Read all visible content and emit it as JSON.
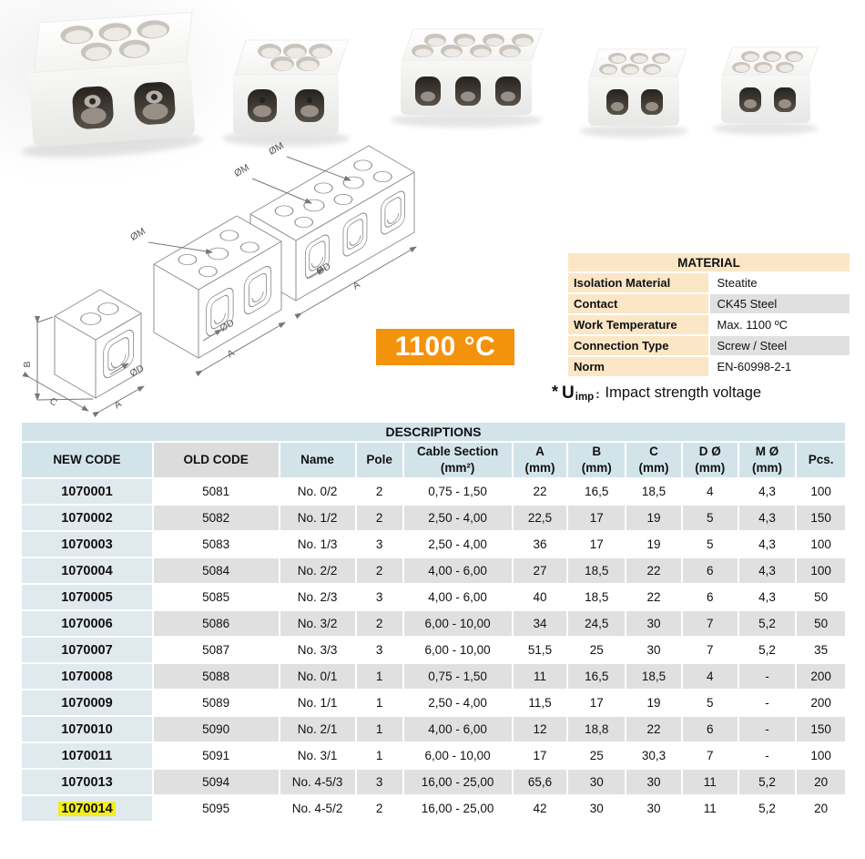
{
  "badge": {
    "text": "1100 °C"
  },
  "note": {
    "prefix": "*",
    "symbol": "U",
    "subscript": "imp",
    "separator": ":",
    "text": "Impact strength voltage"
  },
  "drawings": {
    "labels": {
      "diameter_m": "ØM",
      "diameter_d": "ØD",
      "dim_a": "A",
      "dim_b": "B",
      "dim_c": "C"
    }
  },
  "photos": {
    "items": [
      {
        "name": "porcelain-terminal-block-2-pole-large"
      },
      {
        "name": "porcelain-terminal-block-2-pole-medium"
      },
      {
        "name": "porcelain-terminal-block-3-pole"
      },
      {
        "name": "porcelain-terminal-block-2-pole-small-1"
      },
      {
        "name": "porcelain-terminal-block-2-pole-small-2"
      }
    ]
  },
  "material_table": {
    "title": "MATERIAL",
    "rows": [
      {
        "label": "Isolation Material",
        "value": "Steatite"
      },
      {
        "label": "Contact",
        "value": "CK45 Steel"
      },
      {
        "label": "Work Temperature",
        "value": "Max. 1100 ºC"
      },
      {
        "label": "Connection Type",
        "value": "Screw / Steel"
      },
      {
        "label": "Norm",
        "value": "EN-60998-2-1"
      }
    ]
  },
  "descriptions_table": {
    "title": "DESCRIPTIONS",
    "columns": [
      {
        "label": "NEW CODE"
      },
      {
        "label": "OLD CODE"
      },
      {
        "label": "Name"
      },
      {
        "label": "Pole"
      },
      {
        "label": "Cable Section",
        "sub": "(mm²)"
      },
      {
        "label": "A",
        "sub": "(mm)"
      },
      {
        "label": "B",
        "sub": "(mm)"
      },
      {
        "label": "C",
        "sub": "(mm)"
      },
      {
        "label": "D Ø",
        "sub": "(mm)"
      },
      {
        "label": "M Ø",
        "sub": "(mm)"
      },
      {
        "label": "Pcs."
      }
    ],
    "rows": [
      [
        "1070001",
        "5081",
        "No. 0/2",
        "2",
        "0,75 - 1,50",
        "22",
        "16,5",
        "18,5",
        "4",
        "4,3",
        "100"
      ],
      [
        "1070002",
        "5082",
        "No. 1/2",
        "2",
        "2,50 - 4,00",
        "22,5",
        "17",
        "19",
        "5",
        "4,3",
        "150"
      ],
      [
        "1070003",
        "5083",
        "No. 1/3",
        "3",
        "2,50 - 4,00",
        "36",
        "17",
        "19",
        "5",
        "4,3",
        "100"
      ],
      [
        "1070004",
        "5084",
        "No. 2/2",
        "2",
        "4,00 - 6,00",
        "27",
        "18,5",
        "22",
        "6",
        "4,3",
        "100"
      ],
      [
        "1070005",
        "5085",
        "No. 2/3",
        "3",
        "4,00 - 6,00",
        "40",
        "18,5",
        "22",
        "6",
        "4,3",
        "50"
      ],
      [
        "1070006",
        "5086",
        "No. 3/2",
        "2",
        "6,00 - 10,00",
        "34",
        "24,5",
        "30",
        "7",
        "5,2",
        "50"
      ],
      [
        "1070007",
        "5087",
        "No. 3/3",
        "3",
        "6,00 - 10,00",
        "51,5",
        "25",
        "30",
        "7",
        "5,2",
        "35"
      ],
      [
        "1070008",
        "5088",
        "No. 0/1",
        "1",
        "0,75 - 1,50",
        "11",
        "16,5",
        "18,5",
        "4",
        "-",
        "200"
      ],
      [
        "1070009",
        "5089",
        "No. 1/1",
        "1",
        "2,50 - 4,00",
        "11,5",
        "17",
        "19",
        "5",
        "-",
        "200"
      ],
      [
        "1070010",
        "5090",
        "No. 2/1",
        "1",
        "4,00 - 6,00",
        "12",
        "18,8",
        "22",
        "6",
        "-",
        "150"
      ],
      [
        "1070011",
        "5091",
        "No. 3/1",
        "1",
        "6,00 - 10,00",
        "17",
        "25",
        "30,3",
        "7",
        "-",
        "100"
      ],
      [
        "1070013",
        "5094",
        "No. 4-5/3",
        "3",
        "16,00 - 25,00",
        "65,6",
        "30",
        "30",
        "11",
        "5,2",
        "20"
      ],
      [
        "1070014",
        "5095",
        "No. 4-5/2",
        "2",
        "16,00 - 25,00",
        "42",
        "30",
        "30",
        "11",
        "5,2",
        "20"
      ]
    ],
    "highlighted_new_code": "1070014"
  },
  "colors": {
    "accent_blue": "#d2e4ea",
    "new_code_cell_blue": "#dfe9ee",
    "gray_cell": "#e0e0e0",
    "header_gray": "#dcdcdc",
    "cream": "#fbe6c6",
    "orange": "#f3920b",
    "highlight_yellow": "#f2ee1f"
  }
}
